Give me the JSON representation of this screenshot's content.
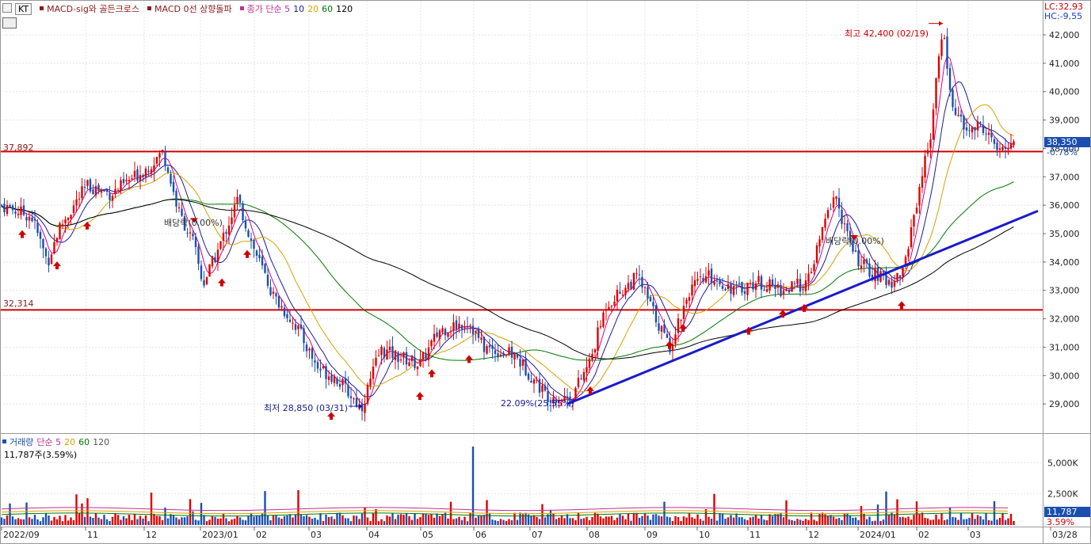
{
  "stock_code": "KT",
  "legend": {
    "item1": "MACD-sig와 골든크로스",
    "item2": "MACD 0선 상향돌파",
    "ma_label": "종가 단순 5",
    "ma_periods": [
      "10",
      "20",
      "60",
      "120"
    ],
    "ma_colors": [
      "#d60080",
      "#1a1a9a",
      "#d9a000",
      "#007a00",
      "#000000"
    ]
  },
  "limits": {
    "lc": "LC:32,93",
    "hc": "HC:-9,55"
  },
  "current": {
    "price": "38,350",
    "change": "-0.78%"
  },
  "levels": {
    "upper_label": "37,892",
    "upper_value": 37892,
    "lower_label": "32,314",
    "lower_value": 32314
  },
  "annotations": {
    "high": "최고 42,400 (02/19)",
    "low": "최저 28,850 (03/31)",
    "dividend1": "배당락(0.00%)",
    "dividend2": "배당락(0.00%)",
    "low_pct": "22.09%(25.55%)"
  },
  "volume": {
    "legend_label": "거래량",
    "ma_label": "단순 5",
    "ma_periods": [
      "20",
      "60",
      "120"
    ],
    "info": "11,787주(3.59%)",
    "current": "11,787",
    "current_pct": "3.59%",
    "ticks": [
      "5,000K",
      "2,500K"
    ]
  },
  "chart_data": {
    "type": "candlestick",
    "price_ylim": [
      28000,
      43200
    ],
    "price_ticks": [
      "42,000",
      "41,000",
      "40,000",
      "39,000",
      "38,000",
      "37,000",
      "36,000",
      "35,000",
      "34,000",
      "33,000",
      "32,000",
      "31,000",
      "30,000",
      "29,000"
    ],
    "x_tick_labels": [
      "2022/09",
      "11",
      "12",
      "2023/01",
      "02",
      "03",
      "04",
      "05",
      "06",
      "07",
      "08",
      "09",
      "10",
      "11",
      "12",
      "2024/01",
      "02",
      "03",
      "03/28"
    ],
    "key_points": [
      {
        "date": "2022/09",
        "close": 36000
      },
      {
        "date": "2022/12",
        "close": 37892
      },
      {
        "date": "2023/01",
        "close": 33200
      },
      {
        "date": "2023/03/31",
        "close": 28850
      },
      {
        "date": "2023/05",
        "close": 31900
      },
      {
        "date": "2023/07",
        "close": 29100
      },
      {
        "date": "2023/08",
        "close": 33500
      },
      {
        "date": "2023/12",
        "close": 36400
      },
      {
        "date": "2024/01",
        "close": 33000
      },
      {
        "date": "2024/02/19",
        "close": 42400
      },
      {
        "date": "2024/03/28",
        "close": 38350
      }
    ],
    "volume_ylim": [
      0,
      6800
    ],
    "volume_unit": "K"
  }
}
